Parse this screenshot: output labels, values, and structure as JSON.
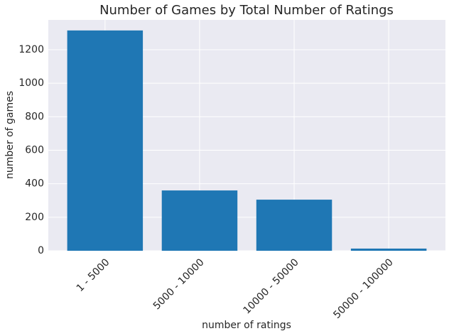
{
  "chart_data": {
    "type": "bar",
    "title": "Number of Games by Total Number of Ratings",
    "x_label": "number of ratings",
    "y_label": "number of games",
    "categories": [
      "1 - 5000",
      "5000 - 10000",
      "10000 - 50000",
      "50000 - 100000"
    ],
    "values": [
      1315,
      360,
      305,
      13
    ],
    "color": "#1f77b4",
    "ylim": [
      0,
      1378
    ],
    "yticks": [
      0,
      200,
      400,
      600,
      800,
      1000,
      1200
    ],
    "grid": true
  }
}
